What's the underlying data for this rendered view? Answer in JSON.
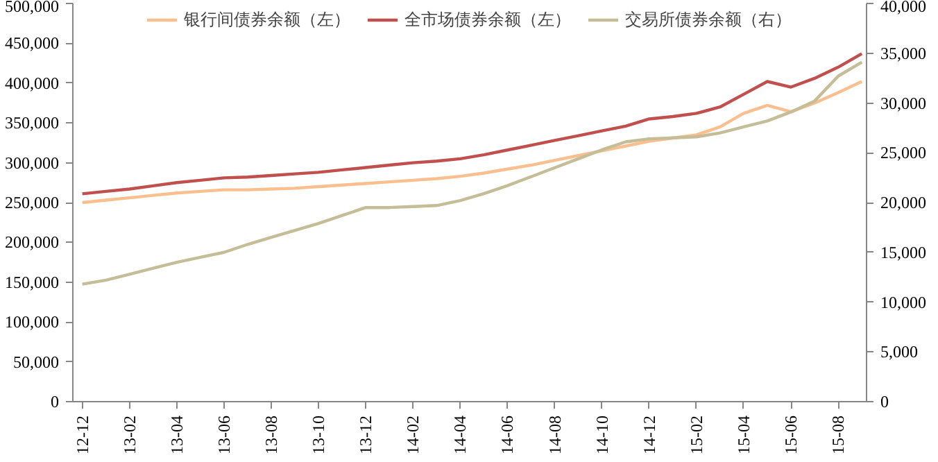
{
  "chart_data": {
    "type": "line",
    "categories": [
      "12-12",
      null,
      "13-02",
      null,
      "13-04",
      null,
      "13-06",
      null,
      "13-08",
      null,
      "13-10",
      null,
      "13-12",
      null,
      "14-02",
      null,
      "14-04",
      null,
      "14-06",
      null,
      "14-08",
      null,
      "14-10",
      null,
      "14-12",
      null,
      "15-02",
      null,
      "15-04",
      null,
      "15-06",
      null,
      "15-08",
      null
    ],
    "series": [
      {
        "name": "银行间债券余额（左）",
        "color": "#f9bf8f",
        "values": [
          250000,
          253000,
          256000,
          259000,
          262000,
          264000,
          266000,
          266000,
          267000,
          268000,
          270000,
          272000,
          274000,
          276000,
          278000,
          280000,
          283000,
          287000,
          292000,
          297000,
          303000,
          309000,
          315000,
          321000,
          327000,
          331000,
          335000,
          345000,
          362000,
          372000,
          364000,
          375000,
          388000,
          402000
        ]
      },
      {
        "name": "全市场债券余额（左）",
        "color": "#c0504d",
        "values": [
          261000,
          264000,
          267000,
          271000,
          275000,
          278000,
          281000,
          282000,
          284000,
          286000,
          288000,
          291000,
          294000,
          297000,
          300000,
          302000,
          305000,
          310000,
          316000,
          322000,
          328000,
          334000,
          340000,
          346000,
          355000,
          358000,
          362000,
          370000,
          386000,
          402000,
          395000,
          406000,
          420000,
          437000
        ]
      },
      {
        "name": "交易所债券余额（右）",
        "color": "#c4bd97",
        "axis": "y2",
        "values": [
          11800,
          12200,
          12800,
          13400,
          14000,
          14500,
          15000,
          15800,
          16500,
          17200,
          17900,
          18700,
          19500,
          19500,
          19600,
          19700,
          20200,
          20900,
          21700,
          22600,
          23500,
          24400,
          25300,
          26100,
          26400,
          26500,
          26600,
          27000,
          27600,
          28200,
          29100,
          30200,
          32700,
          34100
        ]
      }
    ],
    "ylim": [
      0,
      500000
    ],
    "yticks": [
      0,
      {
        "value": 50000,
        "label": "50,000"
      },
      {
        "value": 100000,
        "label": "100,000"
      },
      {
        "value": 150000,
        "label": "150,000"
      },
      {
        "value": 200000,
        "label": "200,000"
      },
      {
        "value": 250000,
        "label": "250,000"
      },
      {
        "value": 300000,
        "label": "300,000"
      },
      {
        "value": 350000,
        "label": "350,000"
      },
      {
        "value": 400000,
        "label": "400,000"
      },
      {
        "value": 450000,
        "label": "450,000"
      },
      {
        "value": 500000,
        "label": "500,000"
      }
    ],
    "y2lim": [
      0,
      40000
    ],
    "y2ticks": [
      0,
      {
        "value": 5000,
        "label": "5,000"
      },
      {
        "value": 10000,
        "label": "10,000"
      },
      {
        "value": 15000,
        "label": "15,000"
      },
      {
        "value": 20000,
        "label": "20,000"
      },
      {
        "value": 25000,
        "label": "25,000"
      },
      {
        "value": 30000,
        "label": "30,000"
      },
      {
        "value": 35000,
        "label": "35,000"
      },
      {
        "value": 40000,
        "label": "40,000"
      }
    ],
    "grid": false,
    "legend": "top"
  }
}
